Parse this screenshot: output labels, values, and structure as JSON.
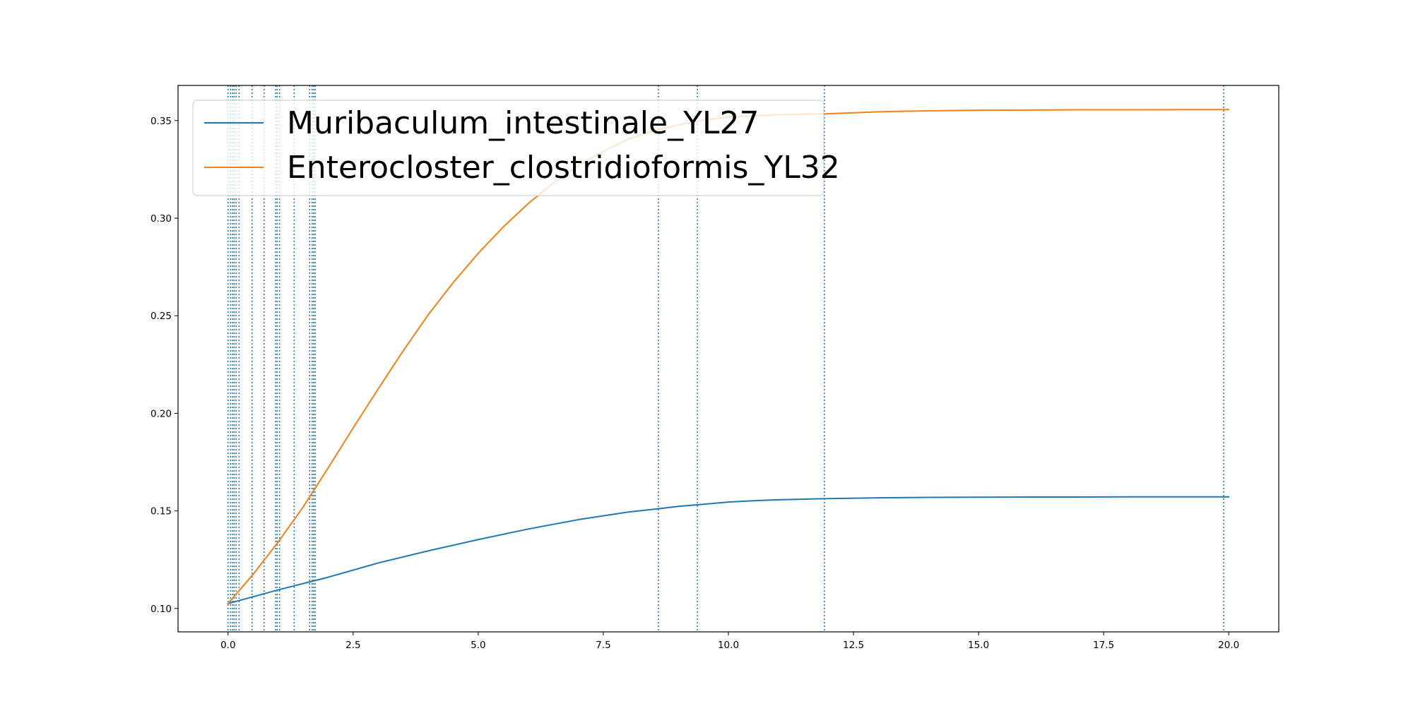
{
  "chart_data": {
    "type": "line",
    "title": "",
    "xlabel": "",
    "ylabel": "",
    "xlim": [
      -1.0,
      21.0
    ],
    "ylim": [
      0.088,
      0.368
    ],
    "xticks": [
      0.0,
      2.5,
      5.0,
      7.5,
      10.0,
      12.5,
      15.0,
      17.5,
      20.0
    ],
    "xtick_labels": [
      "0.0",
      "2.5",
      "5.0",
      "7.5",
      "10.0",
      "12.5",
      "15.0",
      "17.5",
      "20.0"
    ],
    "yticks": [
      0.1,
      0.15,
      0.2,
      0.25,
      0.3,
      0.35
    ],
    "ytick_labels": [
      "0.10",
      "0.15",
      "0.20",
      "0.25",
      "0.30",
      "0.35"
    ],
    "grid": false,
    "legend_position": "upper-left",
    "vertical_lines": {
      "style": "dotted",
      "color": "#1f77b4",
      "x": [
        0.0,
        0.05,
        0.09,
        0.12,
        0.16,
        0.22,
        0.48,
        0.72,
        0.95,
        0.98,
        1.03,
        1.32,
        1.63,
        1.68,
        1.71,
        1.74,
        8.6,
        9.38,
        11.92,
        19.9
      ]
    },
    "series": [
      {
        "name": "Muribaculum_intestinale_YL27",
        "color": "#1f77b4",
        "x": [
          0,
          1,
          2,
          3,
          4,
          5,
          6,
          7,
          8,
          8.6,
          9,
          9.5,
          10,
          10.5,
          11,
          12,
          13,
          14,
          15,
          16,
          17,
          18,
          19,
          20
        ],
        "values": [
          0.1025,
          0.1095,
          0.116,
          0.1233,
          0.1295,
          0.1353,
          0.1407,
          0.1455,
          0.1494,
          0.1511,
          0.1523,
          0.1534,
          0.1545,
          0.1552,
          0.1557,
          0.1563,
          0.1567,
          0.1569,
          0.157,
          0.1571,
          0.1571,
          0.1572,
          0.1572,
          0.1572
        ]
      },
      {
        "name": "Enterocloster_clostridioformis_YL32",
        "color": "#ff7f0e",
        "x": [
          0,
          0.5,
          1,
          1.5,
          2,
          2.5,
          3,
          3.5,
          4,
          4.5,
          5,
          5.5,
          6,
          6.5,
          7,
          7.5,
          8,
          8.5,
          9,
          9.5,
          10,
          11,
          12,
          13,
          14,
          15,
          16,
          17,
          18,
          19,
          20
        ],
        "values": [
          0.1025,
          0.1175,
          0.134,
          0.152,
          0.172,
          0.1925,
          0.2125,
          0.232,
          0.2505,
          0.267,
          0.282,
          0.2955,
          0.3075,
          0.318,
          0.327,
          0.3343,
          0.3405,
          0.3447,
          0.3478,
          0.3502,
          0.3518,
          0.353,
          0.3535,
          0.3545,
          0.355,
          0.3553,
          0.3554,
          0.3555,
          0.3555,
          0.3556,
          0.3556
        ]
      }
    ]
  }
}
